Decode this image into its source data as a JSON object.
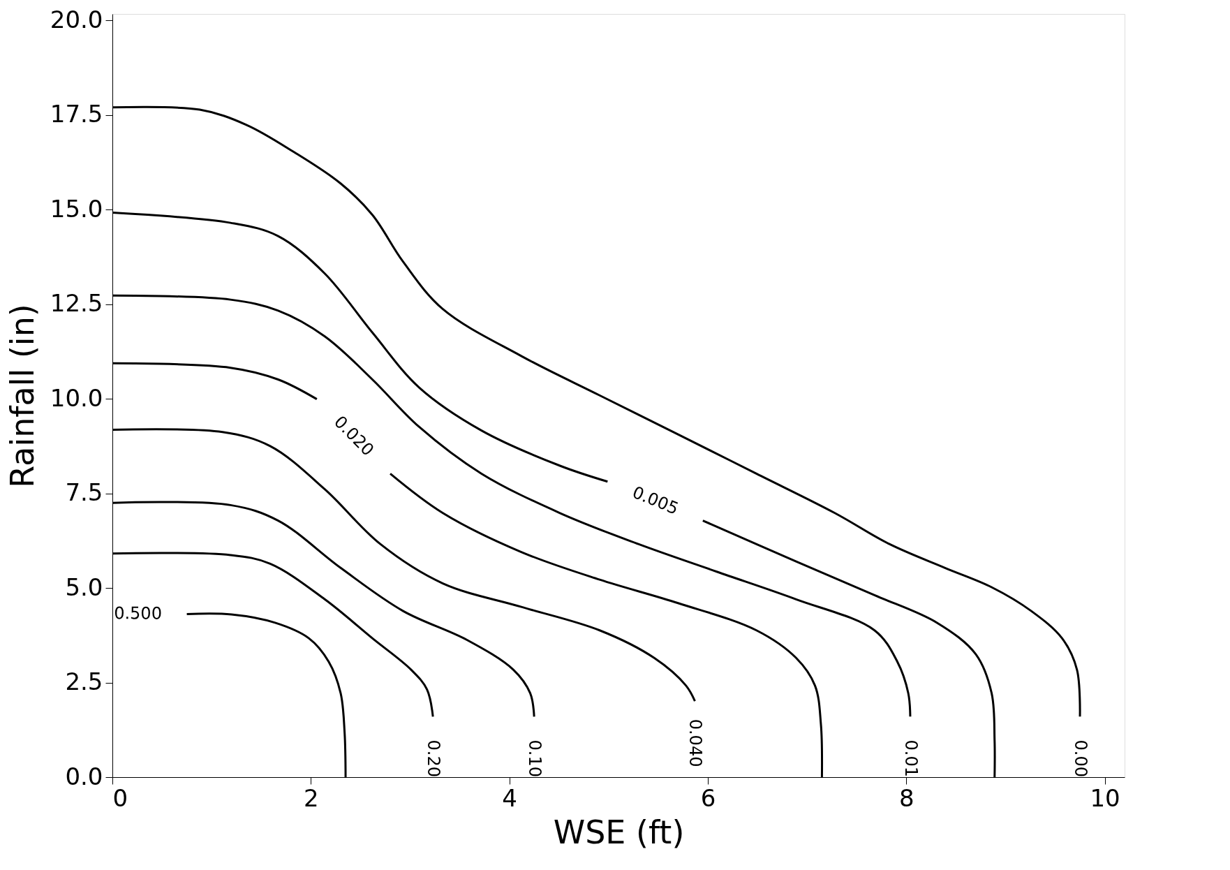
{
  "chart_data": {
    "type": "line",
    "xlabel": "WSE (ft)",
    "ylabel": "Rainfall (in)",
    "xlim": [
      0,
      10.2
    ],
    "ylim": [
      0,
      20.17
    ],
    "xticks": [
      0,
      2,
      4,
      6,
      8,
      10
    ],
    "yticks": [
      {
        "value": 0,
        "label": "0.0"
      },
      {
        "value": 2.5,
        "label": "2.5"
      },
      {
        "value": 5,
        "label": "5.0"
      },
      {
        "value": 7.5,
        "label": "7.5"
      },
      {
        "value": 10,
        "label": "10.0"
      },
      {
        "value": 12.5,
        "label": "12.5"
      },
      {
        "value": 15,
        "label": "15.0"
      },
      {
        "value": 17.5,
        "label": "17.5"
      },
      {
        "value": 20,
        "label": "20.0"
      }
    ],
    "grid": false,
    "marker": "none",
    "line_style": "solid",
    "series": [
      {
        "name": "0.500",
        "color": "#000000",
        "x": [
          0.75,
          1.2,
          1.64,
          1.98,
          2.18,
          2.3,
          2.34,
          2.35
        ],
        "values": [
          4.31,
          4.3,
          4.08,
          3.67,
          3.05,
          2.22,
          1.18,
          0
        ]
      },
      {
        "name": "0.20",
        "color": "#000000",
        "x": [
          0,
          1.19,
          1.59,
          2.14,
          2.62,
          3.01,
          3.17,
          3.23
        ],
        "values": [
          5.91,
          5.87,
          5.64,
          4.7,
          3.67,
          2.84,
          2.32,
          1.6
        ]
      },
      {
        "name": "0.10",
        "color": "#000000",
        "x": [
          0,
          1.19,
          1.67,
          2.3,
          2.93,
          3.57,
          4.04,
          4.21,
          4.25
        ],
        "values": [
          7.25,
          7.19,
          6.78,
          5.53,
          4.39,
          3.63,
          2.84,
          2.22,
          1.6
        ]
      },
      {
        "name": "0.040",
        "color": "#000000",
        "x": [
          0,
          1.11,
          1.59,
          2.14,
          2.7,
          3.33,
          4.12,
          4.91,
          5.46,
          5.78,
          5.87
        ],
        "values": [
          9.18,
          9.12,
          8.75,
          7.61,
          6.16,
          5.12,
          4.5,
          3.88,
          3.15,
          2.42,
          2.01
        ]
      },
      {
        "name": "0.020",
        "color": "#000000",
        "x": [
          0,
          1.19,
          1.67,
          2.06,
          2.4,
          2.8,
          3.33,
          4.12,
          4.91,
          5.7,
          6.49,
          6.89,
          7.08,
          7.14,
          7.15
        ],
        "values": [
          10.94,
          10.82,
          10.51,
          9.99,
          null,
          8.02,
          6.98,
          5.95,
          5.22,
          4.6,
          3.88,
          3.15,
          2.42,
          1.39,
          0
        ]
      },
      {
        "name": "0.01",
        "color": "#000000",
        "x": [
          0,
          1.19,
          1.67,
          2.14,
          2.62,
          3.09,
          3.72,
          4.51,
          5.3,
          6.09,
          6.89,
          7.68,
          7.91,
          8.02,
          8.04
        ],
        "values": [
          12.73,
          12.62,
          12.33,
          11.65,
          10.51,
          9.26,
          8.02,
          6.98,
          6.16,
          5.43,
          4.7,
          3.88,
          3.05,
          2.22,
          1.6
        ]
      },
      {
        "name": "0.005",
        "color": "#000000",
        "x": [
          0,
          1.19,
          1.67,
          2.14,
          2.62,
          3.09,
          3.72,
          4.51,
          4.99,
          5.5,
          5.95,
          6.89,
          7.68,
          8.31,
          8.7,
          8.86,
          8.89,
          8.89
        ],
        "values": [
          14.92,
          14.65,
          14.3,
          13.31,
          11.75,
          10.3,
          9.16,
          8.23,
          7.81,
          null,
          6.78,
          5.7,
          4.81,
          4.08,
          3.25,
          2.22,
          0.97,
          0
        ]
      },
      {
        "name": "0.00",
        "color": "#000000",
        "x": [
          0,
          0.88,
          1.35,
          1.83,
          2.3,
          2.62,
          2.93,
          3.33,
          4.12,
          4.91,
          5.7,
          6.49,
          7.28,
          7.83,
          8.39,
          8.86,
          9.26,
          9.57,
          9.72,
          9.75
        ],
        "values": [
          17.7,
          17.64,
          17.24,
          16.52,
          15.69,
          14.86,
          13.62,
          12.37,
          11.13,
          10.09,
          9.06,
          8.02,
          6.98,
          6.16,
          5.53,
          5.02,
          4.39,
          3.67,
          2.84,
          1.6
        ]
      }
    ]
  }
}
